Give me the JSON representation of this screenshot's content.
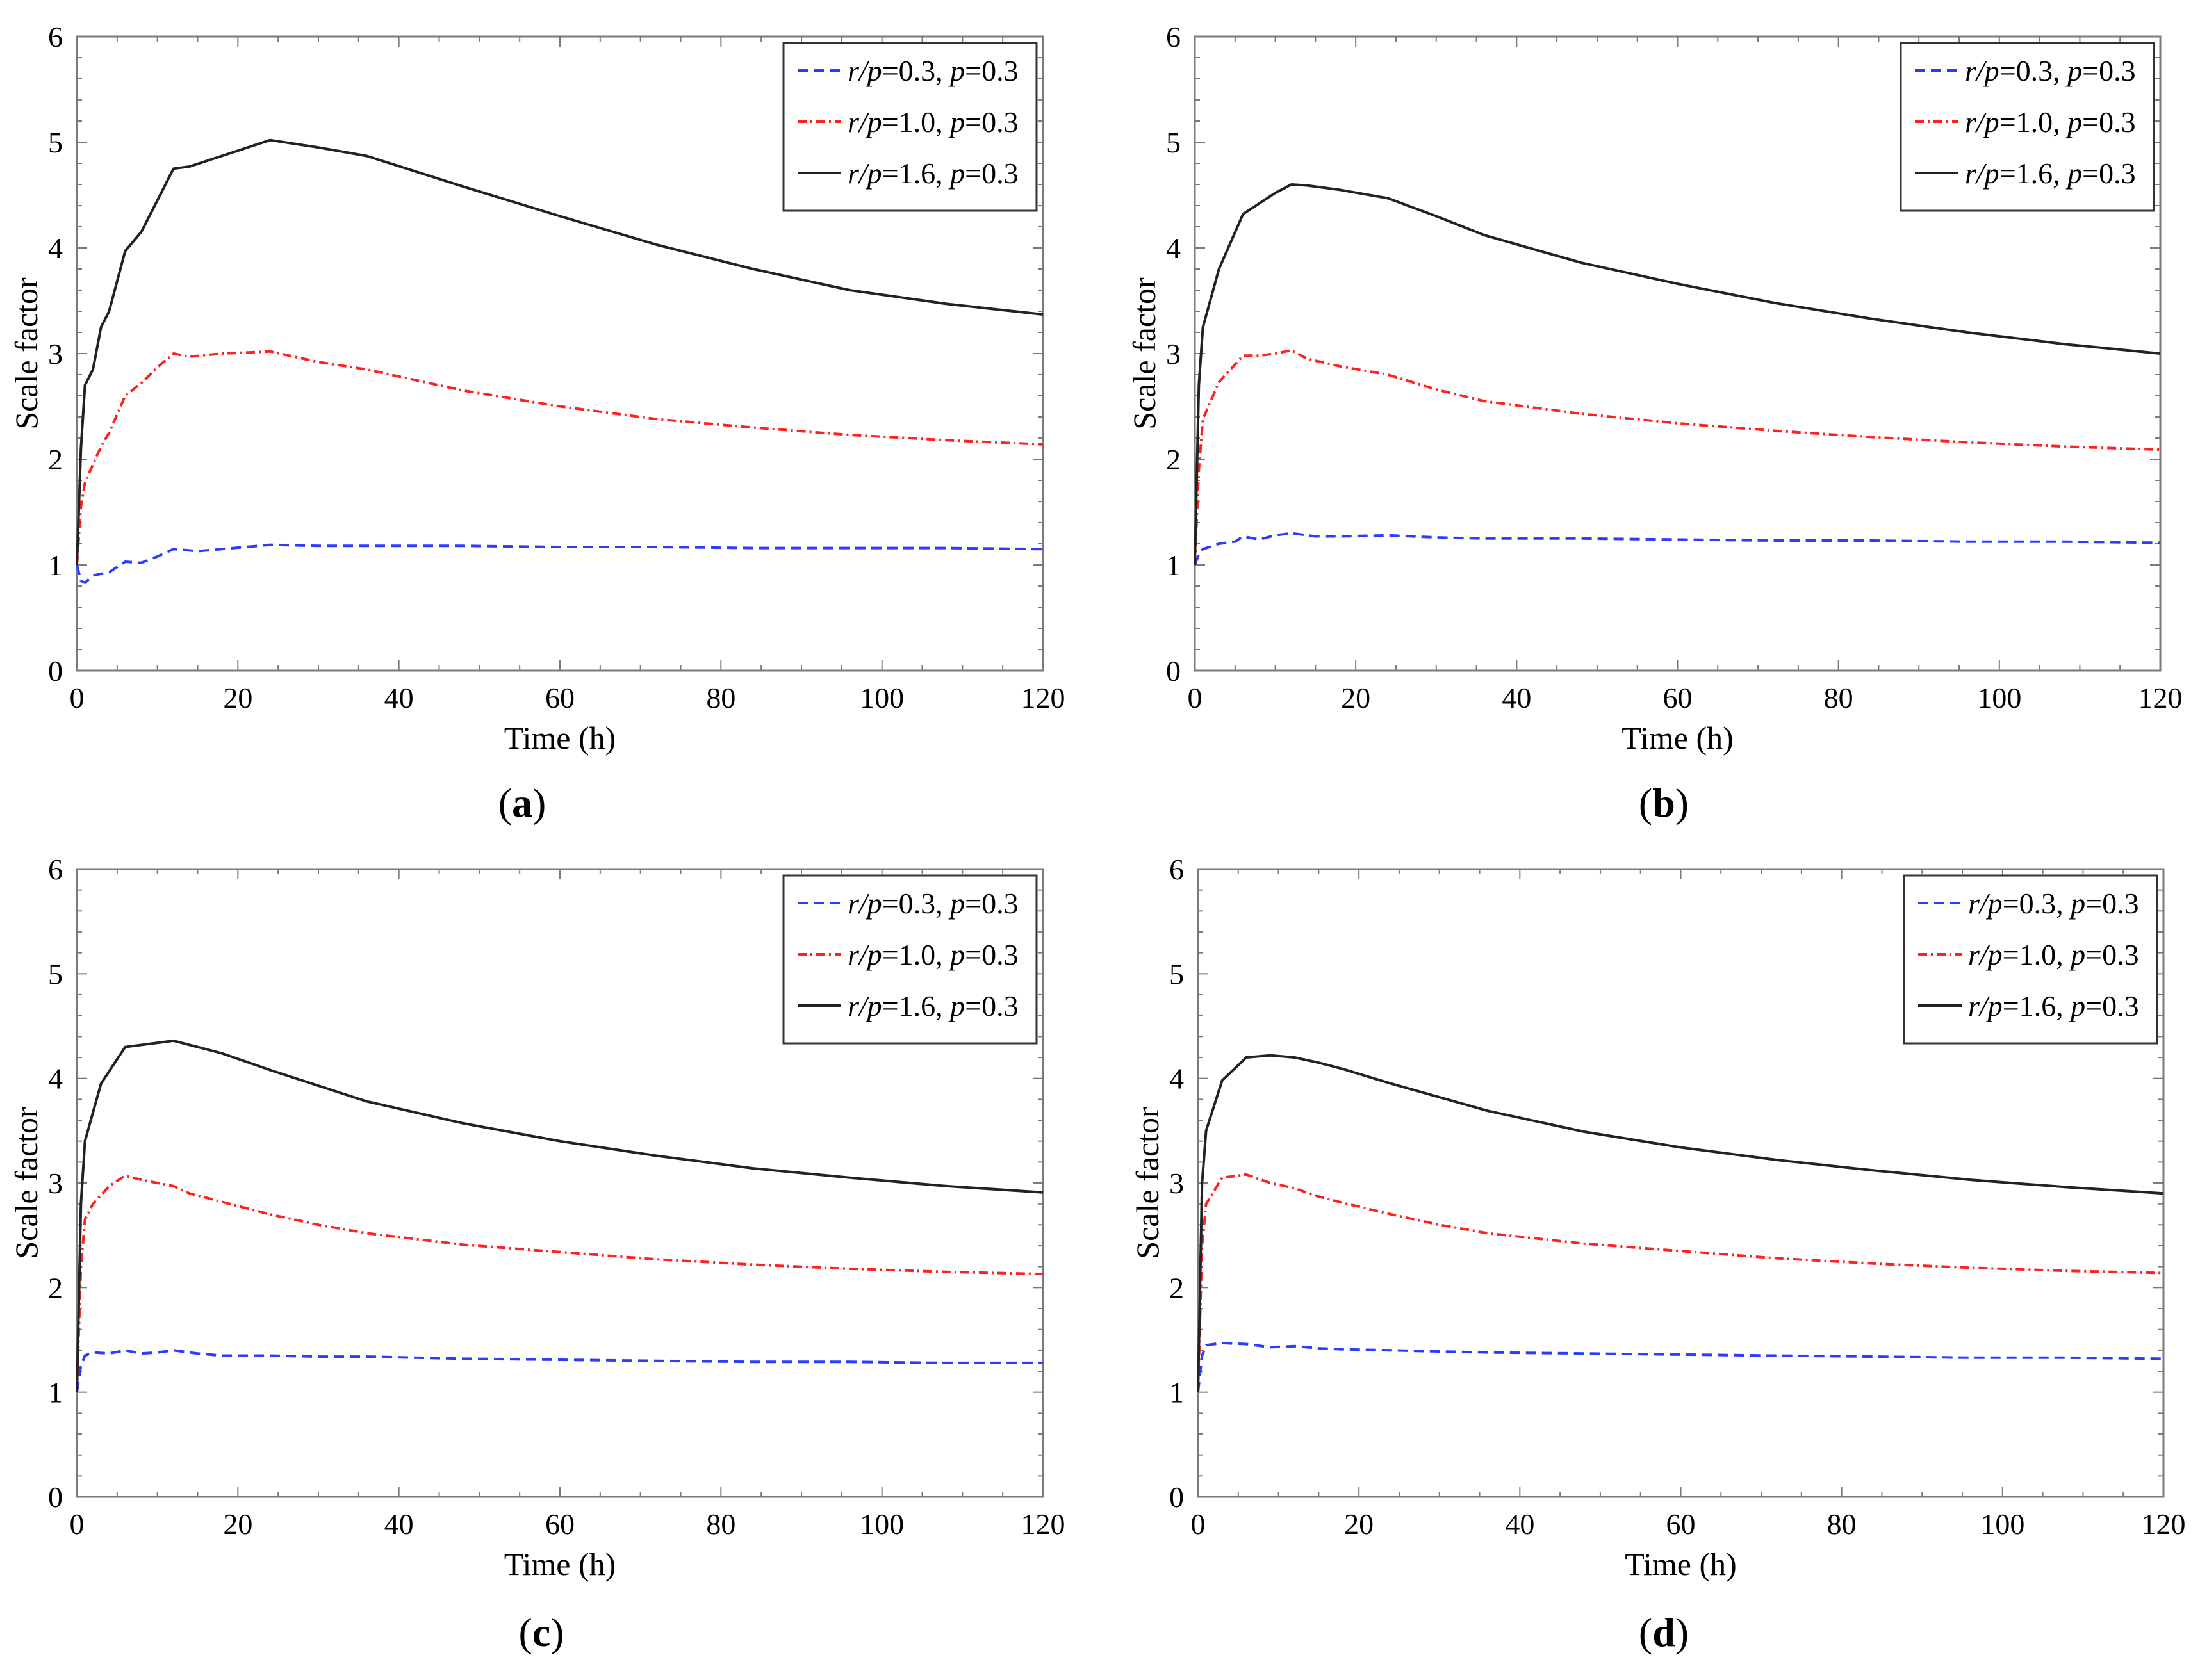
{
  "figure": {
    "series_colors": {
      "s1": "#2b3cff",
      "s2": "#ff2020",
      "s3": "#222222"
    },
    "series_styles": {
      "s1": "dashed",
      "s2": "dashdot",
      "s3": "solid"
    }
  },
  "chart_data": [
    {
      "type": "line",
      "panel_label": "(a)",
      "panel_letter": "a",
      "xlabel": "Time (h)",
      "ylabel": "Scale factor",
      "xlim": [
        0,
        120
      ],
      "ylim": [
        0,
        6
      ],
      "xticks": [
        0,
        20,
        40,
        60,
        80,
        100,
        120
      ],
      "yticks": [
        0,
        1,
        2,
        3,
        4,
        5,
        6
      ],
      "legend_position": "top-right",
      "series": [
        {
          "name": "r/p=0.3, p=0.3",
          "legend": {
            "var1": "r/p",
            "val1": "=0.3, ",
            "var2": "p",
            "val2": "=0.3"
          },
          "x": [
            0,
            0.5,
            1,
            2,
            4,
            6,
            8,
            10,
            12,
            15,
            18,
            21,
            24,
            30,
            36,
            48,
            60,
            72,
            84,
            96,
            108,
            120
          ],
          "values": [
            1.0,
            0.85,
            0.83,
            0.9,
            0.93,
            1.03,
            1.02,
            1.08,
            1.15,
            1.13,
            1.15,
            1.17,
            1.19,
            1.18,
            1.18,
            1.18,
            1.17,
            1.17,
            1.16,
            1.16,
            1.16,
            1.15
          ]
        },
        {
          "name": "r/p=1.0, p=0.3",
          "legend": {
            "var1": "r/p",
            "val1": "=1.0, ",
            "var2": "p",
            "val2": "=0.3"
          },
          "x": [
            0,
            0.5,
            1,
            2,
            3,
            4,
            6,
            8,
            10,
            12,
            14,
            18,
            24,
            30,
            36,
            48,
            60,
            72,
            84,
            96,
            108,
            120
          ],
          "values": [
            1.0,
            1.55,
            1.78,
            1.95,
            2.12,
            2.25,
            2.6,
            2.72,
            2.87,
            3.0,
            2.97,
            3.0,
            3.02,
            2.92,
            2.85,
            2.65,
            2.5,
            2.38,
            2.3,
            2.23,
            2.18,
            2.14
          ]
        },
        {
          "name": "r/p=1.6, p=0.3",
          "legend": {
            "var1": "r/p",
            "val1": "=1.6, ",
            "var2": "p",
            "val2": "=0.3"
          },
          "x": [
            0,
            0.5,
            1,
            2,
            3,
            4,
            6,
            8,
            10,
            12,
            14,
            18,
            24,
            30,
            36,
            48,
            60,
            72,
            84,
            96,
            108,
            120
          ],
          "values": [
            1.0,
            2.1,
            2.7,
            2.85,
            3.25,
            3.4,
            3.97,
            4.15,
            4.45,
            4.75,
            4.77,
            4.87,
            5.02,
            4.95,
            4.87,
            4.58,
            4.3,
            4.03,
            3.8,
            3.6,
            3.47,
            3.37
          ]
        }
      ]
    },
    {
      "type": "line",
      "panel_label": "(b)",
      "panel_letter": "b",
      "xlabel": "Time (h)",
      "ylabel": "Scale factor",
      "xlim": [
        0,
        120
      ],
      "ylim": [
        0,
        6
      ],
      "xticks": [
        0,
        20,
        40,
        60,
        80,
        100,
        120
      ],
      "yticks": [
        0,
        1,
        2,
        3,
        4,
        5,
        6
      ],
      "legend_position": "top-right",
      "series": [
        {
          "name": "r/p=0.3, p=0.3",
          "legend": {
            "var1": "r/p",
            "val1": "=0.3, ",
            "var2": "p",
            "val2": "=0.3"
          },
          "x": [
            0,
            0.5,
            1,
            3,
            5,
            6,
            8,
            10,
            12,
            15,
            18,
            24,
            30,
            36,
            48,
            60,
            72,
            84,
            96,
            108,
            120
          ],
          "values": [
            1.0,
            1.1,
            1.15,
            1.2,
            1.22,
            1.27,
            1.24,
            1.28,
            1.3,
            1.27,
            1.27,
            1.28,
            1.26,
            1.25,
            1.25,
            1.24,
            1.23,
            1.23,
            1.22,
            1.22,
            1.21
          ]
        },
        {
          "name": "r/p=1.0, p=0.3",
          "legend": {
            "var1": "r/p",
            "val1": "=1.0, ",
            "var2": "p",
            "val2": "=0.3"
          },
          "x": [
            0,
            0.5,
            1,
            3,
            6,
            8,
            10,
            12,
            14,
            18,
            24,
            30,
            36,
            48,
            60,
            72,
            84,
            96,
            108,
            120
          ],
          "values": [
            1.0,
            1.9,
            2.38,
            2.73,
            2.98,
            2.98,
            3.0,
            3.03,
            2.95,
            2.88,
            2.8,
            2.66,
            2.55,
            2.43,
            2.34,
            2.27,
            2.21,
            2.16,
            2.12,
            2.09
          ]
        },
        {
          "name": "r/p=1.6, p=0.3",
          "legend": {
            "var1": "r/p",
            "val1": "=1.6, ",
            "var2": "p",
            "val2": "=0.3"
          },
          "x": [
            0,
            0.5,
            1,
            3,
            6,
            8,
            10,
            12,
            14,
            18,
            24,
            30,
            36,
            48,
            60,
            72,
            84,
            96,
            108,
            120
          ],
          "values": [
            1.0,
            2.7,
            3.25,
            3.8,
            4.32,
            4.42,
            4.52,
            4.6,
            4.59,
            4.55,
            4.47,
            4.3,
            4.12,
            3.86,
            3.66,
            3.48,
            3.33,
            3.2,
            3.09,
            3.0
          ]
        }
      ]
    },
    {
      "type": "line",
      "panel_label": "(c)",
      "panel_letter": "c",
      "xlabel": "Time (h)",
      "ylabel": "Scale factor",
      "xlim": [
        0,
        120
      ],
      "ylim": [
        0,
        6
      ],
      "xticks": [
        0,
        20,
        40,
        60,
        80,
        100,
        120
      ],
      "yticks": [
        0,
        1,
        2,
        3,
        4,
        5,
        6
      ],
      "legend_position": "top-right",
      "series": [
        {
          "name": "r/p=0.3, p=0.3",
          "legend": {
            "var1": "r/p",
            "val1": "=0.3, ",
            "var2": "p",
            "val2": "=0.3"
          },
          "x": [
            0,
            0.5,
            1,
            2,
            4,
            6,
            8,
            10,
            12,
            15,
            18,
            24,
            30,
            36,
            48,
            60,
            72,
            84,
            96,
            108,
            120
          ],
          "values": [
            1.0,
            1.25,
            1.35,
            1.38,
            1.37,
            1.4,
            1.37,
            1.38,
            1.4,
            1.37,
            1.35,
            1.35,
            1.34,
            1.34,
            1.32,
            1.31,
            1.3,
            1.29,
            1.29,
            1.28,
            1.28
          ]
        },
        {
          "name": "r/p=1.0, p=0.3",
          "legend": {
            "var1": "r/p",
            "val1": "=1.0, ",
            "var2": "p",
            "val2": "=0.3"
          },
          "x": [
            0,
            0.5,
            1,
            2,
            4,
            6,
            8,
            10,
            12,
            14,
            18,
            24,
            30,
            36,
            48,
            60,
            72,
            84,
            96,
            108,
            120
          ],
          "values": [
            1.0,
            2.2,
            2.65,
            2.8,
            2.97,
            3.07,
            3.03,
            3.0,
            2.97,
            2.9,
            2.82,
            2.7,
            2.6,
            2.52,
            2.41,
            2.34,
            2.27,
            2.22,
            2.18,
            2.15,
            2.13
          ]
        },
        {
          "name": "r/p=1.6, p=0.3",
          "legend": {
            "var1": "r/p",
            "val1": "=1.6, ",
            "var2": "p",
            "val2": "=0.3"
          },
          "x": [
            0,
            0.5,
            1,
            3,
            6,
            9,
            12,
            15,
            18,
            24,
            30,
            36,
            48,
            60,
            72,
            84,
            96,
            108,
            120
          ],
          "values": [
            1.0,
            2.8,
            3.4,
            3.95,
            4.3,
            4.33,
            4.36,
            4.3,
            4.24,
            4.08,
            3.93,
            3.78,
            3.57,
            3.4,
            3.26,
            3.14,
            3.05,
            2.97,
            2.91
          ]
        }
      ]
    },
    {
      "type": "line",
      "panel_label": "(d)",
      "panel_letter": "d",
      "xlabel": "Time (h)",
      "ylabel": "Scale factor",
      "xlim": [
        0,
        120
      ],
      "ylim": [
        0,
        6
      ],
      "xticks": [
        0,
        20,
        40,
        60,
        80,
        100,
        120
      ],
      "yticks": [
        0,
        1,
        2,
        3,
        4,
        5,
        6
      ],
      "legend_position": "top-right",
      "series": [
        {
          "name": "r/p=0.3, p=0.3",
          "legend": {
            "var1": "r/p",
            "val1": "=0.3, ",
            "var2": "p",
            "val2": "=0.3"
          },
          "x": [
            0,
            0.5,
            1,
            3,
            6,
            9,
            12,
            15,
            18,
            24,
            30,
            36,
            48,
            60,
            72,
            84,
            96,
            108,
            120
          ],
          "values": [
            1.0,
            1.35,
            1.45,
            1.47,
            1.46,
            1.43,
            1.44,
            1.42,
            1.41,
            1.4,
            1.39,
            1.38,
            1.37,
            1.36,
            1.35,
            1.34,
            1.33,
            1.33,
            1.32
          ]
        },
        {
          "name": "r/p=1.0, p=0.3",
          "legend": {
            "var1": "r/p",
            "val1": "=1.0, ",
            "var2": "p",
            "val2": "=0.3"
          },
          "x": [
            0,
            0.5,
            1,
            3,
            6,
            9,
            12,
            15,
            18,
            24,
            30,
            36,
            48,
            60,
            72,
            84,
            96,
            108,
            120
          ],
          "values": [
            1.0,
            2.4,
            2.8,
            3.05,
            3.08,
            3.0,
            2.95,
            2.87,
            2.81,
            2.7,
            2.6,
            2.52,
            2.42,
            2.35,
            2.28,
            2.23,
            2.19,
            2.16,
            2.14
          ]
        },
        {
          "name": "r/p=1.6, p=0.3",
          "legend": {
            "var1": "r/p",
            "val1": "=1.6, ",
            "var2": "p",
            "val2": "=0.3"
          },
          "x": [
            0,
            0.5,
            1,
            3,
            6,
            9,
            12,
            15,
            18,
            24,
            30,
            36,
            48,
            60,
            72,
            84,
            96,
            108,
            120
          ],
          "values": [
            1.0,
            3.0,
            3.5,
            3.98,
            4.2,
            4.22,
            4.2,
            4.15,
            4.09,
            3.95,
            3.82,
            3.69,
            3.49,
            3.34,
            3.22,
            3.12,
            3.03,
            2.96,
            2.9
          ]
        }
      ]
    }
  ]
}
